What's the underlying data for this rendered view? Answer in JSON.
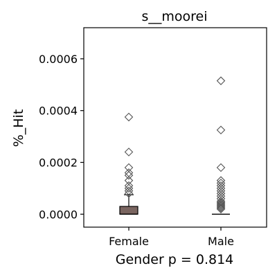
{
  "chart_data": {
    "type": "box",
    "title": "s__moorei",
    "xlabel": "Gender p = 0.814",
    "ylabel": "%_Hit",
    "ylim": [
      -5e-05,
      0.00072
    ],
    "yticks": [
      "0.0000",
      "0.0002",
      "0.0004",
      "0.0006"
    ],
    "ytick_values": [
      0,
      0.0002,
      0.0004,
      0.0006
    ],
    "categories": [
      "Female",
      "Male"
    ],
    "grid": false,
    "box_color": "#7a6560",
    "series": [
      {
        "category": "Female",
        "q1": 0.0,
        "median": 0.0,
        "q3": 3e-05,
        "whisker_low": 0.0,
        "whisker_high": 7.5e-05,
        "outliers": [
          8e-05,
          9e-05,
          0.0001,
          0.00011,
          0.00013,
          0.00015,
          0.00016,
          0.00018,
          0.00024,
          0.000375
        ]
      },
      {
        "category": "Male",
        "q1": 0.0,
        "median": 0.0,
        "q3": 0.0,
        "whisker_low": 0.0,
        "whisker_high": 0.0,
        "outliers": [
          2e-05,
          2.5e-05,
          3e-05,
          3.5e-05,
          4e-05,
          4.5e-05,
          5e-05,
          6e-05,
          7e-05,
          8e-05,
          9e-05,
          0.0001,
          0.00011,
          0.00012,
          0.00013,
          0.00018,
          0.000325,
          0.000515
        ]
      }
    ]
  }
}
